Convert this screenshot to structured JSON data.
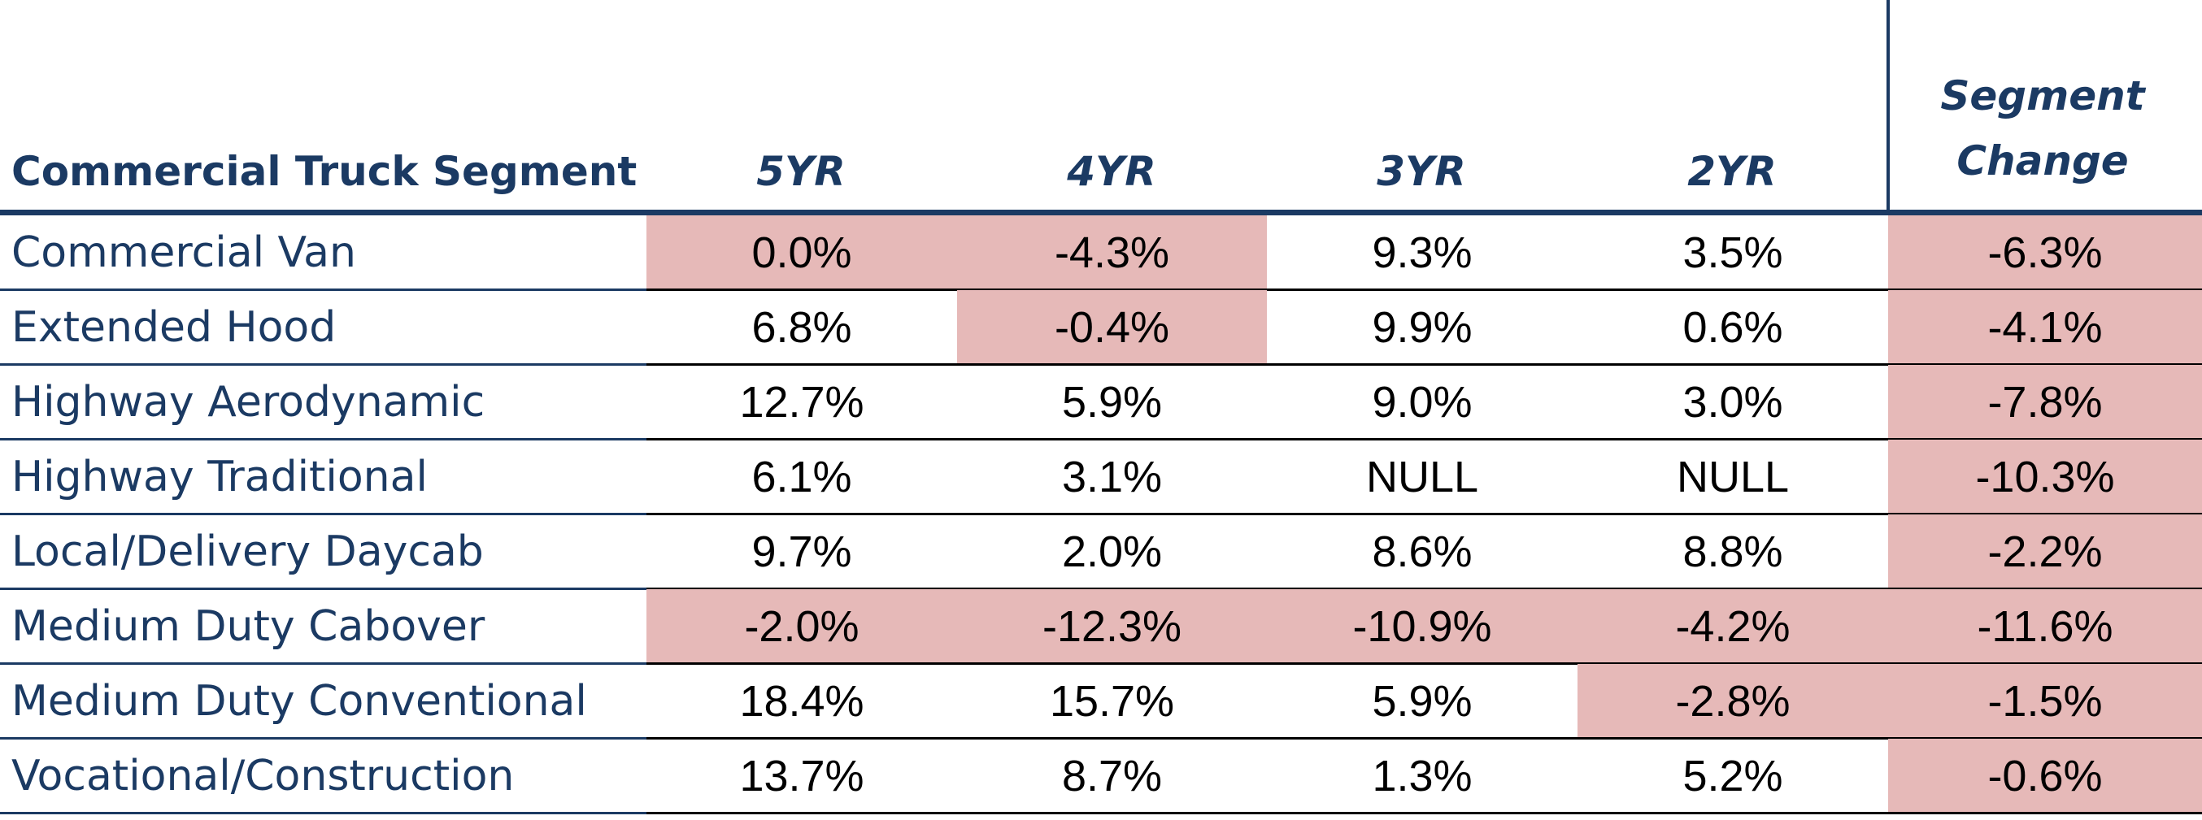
{
  "chart_data": {
    "type": "table",
    "columns": [
      "Commercial Truck  Segment",
      "5YR",
      "4YR",
      "3YR",
      "2YR",
      "Segment Change"
    ],
    "column_header_lines": {
      "segment_change": [
        "Segment",
        "Change"
      ]
    },
    "rows": [
      {
        "segment": "Commercial Van",
        "values": [
          "0.0%",
          "-4.3%",
          "9.3%",
          "3.5%",
          "-6.3%"
        ],
        "highlight": [
          true,
          true,
          false,
          false,
          true
        ]
      },
      {
        "segment": "Extended Hood",
        "values": [
          "6.8%",
          "-0.4%",
          "9.9%",
          "0.6%",
          "-4.1%"
        ],
        "highlight": [
          false,
          true,
          false,
          false,
          true
        ]
      },
      {
        "segment": "Highway Aerodynamic",
        "values": [
          "12.7%",
          "5.9%",
          "9.0%",
          "3.0%",
          "-7.8%"
        ],
        "highlight": [
          false,
          false,
          false,
          false,
          true
        ]
      },
      {
        "segment": "Highway Traditional",
        "values": [
          "6.1%",
          "3.1%",
          "NULL",
          "NULL",
          "-10.3%"
        ],
        "highlight": [
          false,
          false,
          false,
          false,
          true
        ]
      },
      {
        "segment": "Local/Delivery Daycab",
        "values": [
          "9.7%",
          "2.0%",
          "8.6%",
          "8.8%",
          "-2.2%"
        ],
        "highlight": [
          false,
          false,
          false,
          false,
          true
        ]
      },
      {
        "segment": "Medium Duty Cabover",
        "values": [
          "-2.0%",
          "-12.3%",
          "-10.9%",
          "-4.2%",
          "-11.6%"
        ],
        "highlight": [
          true,
          true,
          true,
          true,
          true
        ]
      },
      {
        "segment": "Medium Duty Conventional",
        "values": [
          "18.4%",
          "15.7%",
          "5.9%",
          "-2.8%",
          "-1.5%"
        ],
        "highlight": [
          false,
          false,
          false,
          true,
          true
        ]
      },
      {
        "segment": "Vocational/Construction",
        "values": [
          "13.7%",
          "8.7%",
          "1.3%",
          "5.2%",
          "-0.6%"
        ],
        "highlight": [
          false,
          false,
          false,
          false,
          true
        ]
      }
    ]
  },
  "colors": {
    "header_text": "#1b3a63",
    "negative_fill": "#e6b9b8",
    "rule_dark": "#1b3a63",
    "rule": "#000000"
  }
}
